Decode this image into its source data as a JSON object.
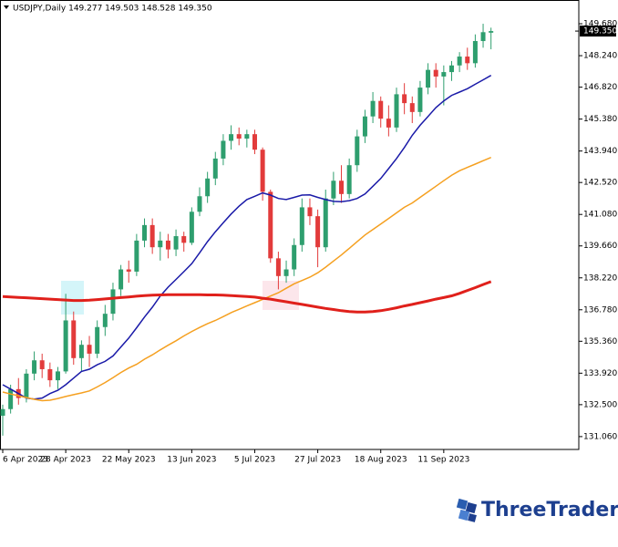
{
  "chart_data": {
    "type": "candlestick",
    "title": "USDJPY,Daily 149.277 149.503 148.528 149.350",
    "categories": [
      "6 Apr 2023",
      null,
      null,
      null,
      null,
      null,
      null,
      null,
      "28 Apr 2023",
      null,
      null,
      null,
      null,
      null,
      null,
      null,
      "22 May 2023",
      null,
      null,
      null,
      null,
      null,
      null,
      null,
      "13 Jun 2023",
      null,
      null,
      null,
      null,
      null,
      null,
      null,
      "5 Jul 2023",
      null,
      null,
      null,
      null,
      null,
      null,
      null,
      "27 Jul 2023",
      null,
      null,
      null,
      null,
      null,
      null,
      null,
      "18 Aug 2023",
      null,
      null,
      null,
      null,
      null,
      null,
      null,
      "11 Sep 2023",
      null,
      null,
      null,
      null,
      null,
      null
    ],
    "open": [
      132.0,
      132.3,
      133.2,
      132.8,
      133.9,
      134.5,
      134.1,
      133.6,
      134.0,
      136.3,
      134.6,
      135.2,
      134.8,
      136.0,
      136.6,
      137.7,
      138.6,
      138.5,
      139.9,
      140.6,
      139.6,
      139.9,
      139.5,
      140.1,
      139.8,
      141.2,
      141.9,
      142.7,
      143.6,
      144.4,
      144.7,
      144.5,
      144.7,
      144.0,
      142.1,
      139.1,
      138.3,
      138.6,
      139.7,
      141.4,
      141.0,
      139.6,
      141.8,
      142.6,
      142.0,
      143.3,
      144.6,
      145.5,
      146.2,
      145.4,
      145.0,
      146.5,
      146.1,
      145.7,
      146.8,
      147.6,
      147.3,
      147.5,
      147.8,
      148.2,
      147.9,
      148.9,
      149.277
    ],
    "high": [
      132.5,
      133.4,
      133.7,
      134.1,
      134.9,
      134.8,
      134.4,
      134.2,
      137.5,
      136.7,
      135.4,
      135.6,
      136.3,
      137.0,
      138.0,
      138.8,
      139.0,
      140.2,
      140.9,
      140.9,
      140.3,
      140.2,
      140.4,
      140.3,
      141.4,
      142.3,
      143.0,
      143.9,
      144.7,
      145.1,
      145.0,
      144.9,
      144.9,
      144.1,
      142.2,
      139.4,
      139.0,
      140.0,
      141.8,
      141.8,
      141.3,
      142.2,
      143.0,
      143.3,
      143.6,
      144.9,
      145.8,
      146.6,
      146.4,
      146.0,
      146.8,
      147.0,
      146.4,
      147.1,
      147.9,
      147.9,
      147.8,
      148.0,
      148.4,
      148.6,
      149.2,
      149.68,
      149.503
    ],
    "low": [
      131.1,
      132.1,
      132.5,
      132.6,
      133.6,
      133.7,
      133.3,
      133.2,
      133.9,
      134.3,
      134.0,
      134.2,
      134.6,
      135.6,
      136.3,
      137.4,
      138.0,
      138.3,
      139.6,
      139.3,
      139.0,
      139.1,
      139.2,
      139.4,
      139.7,
      141.0,
      141.6,
      142.4,
      143.3,
      144.0,
      144.2,
      144.1,
      143.8,
      141.7,
      138.9,
      137.7,
      138.0,
      138.3,
      139.4,
      140.6,
      138.7,
      139.4,
      141.5,
      141.6,
      141.8,
      143.0,
      144.3,
      145.2,
      145.0,
      144.6,
      144.8,
      145.6,
      145.2,
      145.5,
      146.5,
      146.8,
      146.0,
      147.1,
      147.5,
      147.6,
      147.7,
      148.6,
      148.528
    ],
    "close": [
      132.3,
      133.2,
      132.8,
      133.9,
      134.5,
      134.1,
      133.6,
      134.0,
      136.3,
      134.6,
      135.2,
      134.8,
      136.0,
      136.6,
      137.7,
      138.6,
      138.5,
      139.9,
      140.6,
      139.6,
      139.9,
      139.5,
      140.1,
      139.8,
      141.2,
      141.9,
      142.7,
      143.6,
      144.4,
      144.7,
      144.5,
      144.7,
      144.0,
      142.1,
      139.1,
      138.3,
      138.6,
      139.7,
      141.4,
      141.0,
      139.6,
      141.8,
      142.6,
      142.0,
      143.3,
      144.6,
      145.5,
      146.2,
      145.4,
      145.0,
      146.5,
      146.1,
      145.7,
      146.8,
      147.6,
      147.3,
      147.5,
      147.8,
      148.2,
      147.9,
      148.9,
      149.3,
      149.35
    ],
    "up_color": "#2e9e6e",
    "down_color": "#e23b3b",
    "lines": [
      {
        "color": "#1a1aa8",
        "width": 1.5,
        "values": [
          133.4,
          133.2,
          133.0,
          132.8,
          132.75,
          132.8,
          133.0,
          133.15,
          133.4,
          133.7,
          134.0,
          134.1,
          134.3,
          134.45,
          134.7,
          135.1,
          135.5,
          135.97,
          136.45,
          136.9,
          137.4,
          137.8,
          138.15,
          138.5,
          138.86,
          139.35,
          139.85,
          140.3,
          140.7,
          141.1,
          141.45,
          141.75,
          141.9,
          142.05,
          141.95,
          141.8,
          141.75,
          141.85,
          141.95,
          141.96,
          141.85,
          141.75,
          141.67,
          141.65,
          141.7,
          141.8,
          142.0,
          142.35,
          142.7,
          143.15,
          143.6,
          144.1,
          144.65,
          145.1,
          145.5,
          145.9,
          146.2,
          146.45,
          146.6,
          146.75,
          146.95,
          147.15,
          147.35
        ]
      },
      {
        "color": "#f5a020",
        "width": 1.5,
        "values": [
          133.07,
          132.98,
          132.9,
          132.82,
          132.74,
          132.68,
          132.7,
          132.78,
          132.87,
          132.95,
          133.03,
          133.12,
          133.3,
          133.5,
          133.72,
          133.95,
          134.15,
          134.32,
          134.55,
          134.75,
          134.97,
          135.18,
          135.38,
          135.6,
          135.8,
          135.98,
          136.15,
          136.3,
          136.47,
          136.65,
          136.8,
          136.95,
          137.1,
          137.25,
          137.4,
          137.55,
          137.75,
          137.95,
          138.1,
          138.25,
          138.45,
          138.7,
          138.98,
          139.25,
          139.55,
          139.85,
          140.15,
          140.4,
          140.65,
          140.9,
          141.15,
          141.4,
          141.6,
          141.85,
          142.1,
          142.35,
          142.6,
          142.85,
          143.05,
          143.2,
          143.35,
          143.5,
          143.65
        ]
      },
      {
        "color": "#e0201b",
        "width": 3,
        "values": [
          137.38,
          137.36,
          137.34,
          137.32,
          137.3,
          137.28,
          137.26,
          137.24,
          137.22,
          137.2,
          137.2,
          137.21,
          137.24,
          137.27,
          137.3,
          137.33,
          137.36,
          137.39,
          137.42,
          137.44,
          137.45,
          137.46,
          137.46,
          137.46,
          137.46,
          137.46,
          137.45,
          137.45,
          137.44,
          137.42,
          137.4,
          137.38,
          137.35,
          137.3,
          137.26,
          137.2,
          137.14,
          137.08,
          137.02,
          136.96,
          136.9,
          136.84,
          136.79,
          136.74,
          136.7,
          136.68,
          136.68,
          136.7,
          136.74,
          136.8,
          136.87,
          136.95,
          137.02,
          137.1,
          137.18,
          137.26,
          137.33,
          137.41,
          137.52,
          137.65,
          137.78,
          137.92,
          138.05
        ]
      }
    ],
    "ylim": [
      130.48,
      150.71
    ],
    "yticks": [
      {
        "value": 149.68,
        "label": "149.680"
      },
      {
        "value": 148.24,
        "label": "148.240"
      },
      {
        "value": 146.82,
        "label": "146.820"
      },
      {
        "value": 145.38,
        "label": "145.380"
      },
      {
        "value": 143.94,
        "label": "143.940"
      },
      {
        "value": 142.52,
        "label": "142.520"
      },
      {
        "value": 141.08,
        "label": "141.080"
      },
      {
        "value": 139.66,
        "label": "139.660"
      },
      {
        "value": 138.22,
        "label": "138.220"
      },
      {
        "value": 136.78,
        "label": "136.780"
      },
      {
        "value": 135.36,
        "label": "135.360"
      },
      {
        "value": 133.92,
        "label": "133.920"
      },
      {
        "value": 132.5,
        "label": "132.500"
      },
      {
        "value": 131.06,
        "label": "131.060"
      }
    ],
    "last_price": {
      "value": 149.35,
      "label": "149.350"
    }
  },
  "brand": "ThreeTrader"
}
